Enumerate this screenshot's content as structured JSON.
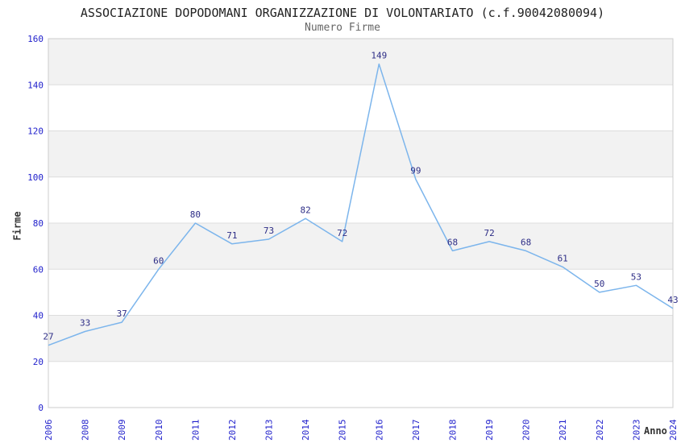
{
  "chart_data": {
    "type": "line",
    "title": "ASSOCIAZIONE DOPODOMANI ORGANIZZAZIONE DI VOLONTARIATO (c.f.90042080094)",
    "subtitle": "Numero Firme",
    "xlabel": "Anno",
    "ylabel": "Firme",
    "categories": [
      "2006",
      "2008",
      "2009",
      "2010",
      "2011",
      "2012",
      "2013",
      "2014",
      "2015",
      "2016",
      "2017",
      "2018",
      "2019",
      "2020",
      "2021",
      "2022",
      "2023",
      "2024"
    ],
    "values": [
      27,
      33,
      37,
      60,
      80,
      71,
      73,
      82,
      72,
      149,
      99,
      68,
      72,
      68,
      61,
      50,
      53,
      43
    ],
    "ylim": [
      0,
      160
    ],
    "ytick_step": 20,
    "grid": true,
    "legend": false,
    "banded_background": true
  },
  "colors": {
    "line": "#7cb5ec",
    "axis_tick_label": "#2222cc",
    "data_label": "#2d2d86",
    "band_gray": "#f2f2f2",
    "band_white": "#ffffff",
    "gridline": "#dddddd",
    "plot_border": "#cccccc",
    "title_text": "#222222",
    "subtitle_text": "#666666",
    "axis_title_text": "#333333"
  }
}
